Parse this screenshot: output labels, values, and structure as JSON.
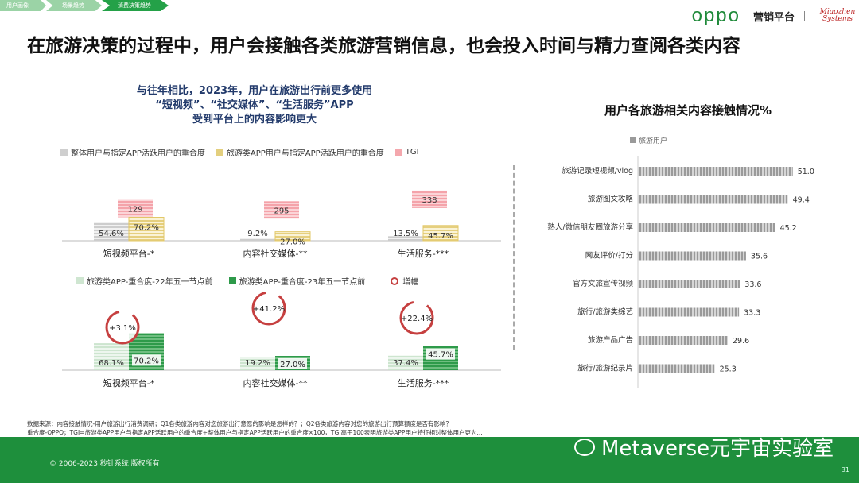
{
  "breadcrumbs": [
    {
      "label": "用户画像",
      "active": false
    },
    {
      "label": "场景趋势",
      "active": false
    },
    {
      "label": "消费决策趋势",
      "active": true
    }
  ],
  "brand": {
    "logo": "oppo",
    "platform": "营销平台",
    "partner": "Miaozhen Systems"
  },
  "headline": "在旅游决策的过程中，用户会接触各类旅游营销信息，也会投入时间与精力查阅各类内容",
  "left_subtitle": [
    "与往年相比，2023年，用户在旅游出行前更多使用",
    "“短视频”、“社交媒体”、“生活服务”APP",
    "受到平台上的内容影响更大"
  ],
  "legend_top": {
    "a": "整体用户与指定APP活跃用户的重合度",
    "b": "旅游类APP用户与指定APP活跃用户的重合度",
    "c": "TGI"
  },
  "legend_bottom": {
    "a": "旅游类APP-重合度-22年五一节点前",
    "b": "旅游类APP-重合度-23年五一节点前",
    "c": "增幅"
  },
  "right_title": "用户各旅游相关内容接触情况%",
  "right_legend": "旅游用户",
  "footnote": [
    "数据来源：内容接触情况-用户旅游出行消费调研；Q1各类旅游内容对您旅游出行意愿的影响是怎样的？；Q2各类旅游内容对您的旅游出行预算额度是否有影响？",
    "重合度-OPPO；TGI=旅游类APP用户与指定APP活跃用户的重合度÷整体用户与指定APP活跃用户的重合度×100，TGI高于100表明旅游类APP用户特征相对整体用户更为..."
  ],
  "copyright": "© 2006-2023 秒针系统 版权所有",
  "watermark": "Metaverse元宇宙实验室",
  "page_number": "31",
  "chart_data": [
    {
      "type": "bar",
      "categories": [
        "短视频平台-*",
        "内容社交媒体-**",
        "生活服务-***"
      ],
      "series": [
        {
          "name": "整体用户与指定APP活跃用户的重合度",
          "values": [
            54.6,
            9.2,
            13.5
          ],
          "labels": [
            "54.6%",
            "9.2%",
            "13.5%"
          ]
        },
        {
          "name": "旅游类APP用户与指定APP活跃用户的重合度",
          "values": [
            70.2,
            27.0,
            45.7
          ],
          "labels": [
            "70.2%",
            "27.0%",
            "45.7%"
          ]
        },
        {
          "name": "TGI",
          "values": [
            129,
            295,
            338
          ],
          "labels": [
            "129",
            "295",
            "338"
          ]
        }
      ],
      "colors": [
        "#cfcfcf",
        "#e3cf7e",
        "#f4a7ad"
      ]
    },
    {
      "type": "bar",
      "categories": [
        "短视频平台-*",
        "内容社交媒体-**",
        "生活服务-***"
      ],
      "series": [
        {
          "name": "旅游类APP-重合度-22年五一节点前",
          "values": [
            68.1,
            19.2,
            37.4
          ],
          "labels": [
            "68.1%",
            "19.2%",
            "37.4%"
          ]
        },
        {
          "name": "旅游类APP-重合度-23年五一节点前",
          "values": [
            70.2,
            27.0,
            45.7
          ],
          "labels": [
            "70.2%",
            "27.0%",
            "45.7%"
          ]
        },
        {
          "name": "增幅",
          "labels": [
            "+3.1%",
            "+41.2%",
            "+22.4%"
          ]
        }
      ],
      "colors": [
        "#cfe6d1",
        "#2e9a4a",
        "#c64040"
      ]
    },
    {
      "type": "bar",
      "orientation": "horizontal",
      "title": "用户各旅游相关内容接触情况%",
      "categories": [
        "旅游记录短视频/vlog",
        "旅游图文攻略",
        "熟人/微信朋友圈旅游分享",
        "网友评价/打分",
        "官方文旅宣传视频",
        "旅行/旅游类综艺",
        "旅游产品广告",
        "旅行/旅游纪录片"
      ],
      "series": [
        {
          "name": "旅游用户",
          "values": [
            51.0,
            49.4,
            45.2,
            35.6,
            33.6,
            33.3,
            29.6,
            25.3
          ],
          "labels": [
            "51.0",
            "49.4",
            "45.2",
            "35.6",
            "33.6",
            "33.3",
            "29.6",
            "25.3"
          ]
        }
      ],
      "colors": [
        "#9a9a9a"
      ]
    }
  ]
}
